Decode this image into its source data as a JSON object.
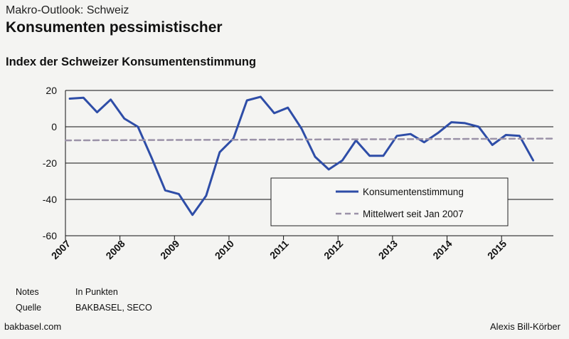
{
  "header": {
    "kicker": "Makro-Outlook: Schweiz",
    "headline": "Konsumenten pessimistischer",
    "chart_title": "Index der Schweizer Konsumentenstimmung"
  },
  "notes": {
    "notes_label": "Notes",
    "notes_value": "In Punkten",
    "source_label": "Quelle",
    "source_value": "BAKBASEL, SECO"
  },
  "footer": {
    "website": "bakbasel.com",
    "author": "Alexis Bill-Körber"
  },
  "colors": {
    "series_line": "#2e4da7",
    "mean_line": "#9b92a8",
    "axis": "#111111"
  },
  "chart_data": {
    "type": "line",
    "title": "Index der Schweizer Konsumentenstimmung",
    "xlabel": "",
    "ylabel": "",
    "xlim": [
      2007.0,
      2015.95
    ],
    "ylim": [
      -60,
      20
    ],
    "yticks": [
      20,
      0,
      -20,
      -40,
      -60
    ],
    "xticks": [
      "2007",
      "2008",
      "2009",
      "2010",
      "2011",
      "2012",
      "2013",
      "2014",
      "2015"
    ],
    "grid": true,
    "legend_position": "bottom-right",
    "series": [
      {
        "name": "Konsumentenstimmung",
        "style": "solid",
        "x": [
          2007.08,
          2007.33,
          2007.58,
          2007.83,
          2008.08,
          2008.33,
          2008.58,
          2008.83,
          2009.08,
          2009.33,
          2009.58,
          2009.83,
          2010.08,
          2010.33,
          2010.58,
          2010.83,
          2011.08,
          2011.33,
          2011.58,
          2011.83,
          2012.08,
          2012.33,
          2012.58,
          2012.83,
          2013.08,
          2013.33,
          2013.58,
          2013.83,
          2014.08,
          2014.33,
          2014.58,
          2014.83,
          2015.08,
          2015.33,
          2015.58
        ],
        "y": [
          15.5,
          16,
          8,
          15,
          4.5,
          0,
          -17,
          -35,
          -37,
          -48.5,
          -38,
          -14,
          -6.5,
          14.5,
          16.5,
          7.5,
          10.5,
          -1,
          -16.5,
          -23.5,
          -18.5,
          -7.5,
          -16,
          -16,
          -5,
          -4,
          -8.5,
          -3.5,
          2.5,
          2,
          0,
          -10,
          -4.5,
          -5,
          -18.5
        ]
      },
      {
        "name": "Mittelwert seit Jan 2007",
        "style": "dashed",
        "x": [
          2007.0,
          2015.95
        ],
        "y": [
          -7.5,
          -6.5
        ]
      }
    ]
  }
}
